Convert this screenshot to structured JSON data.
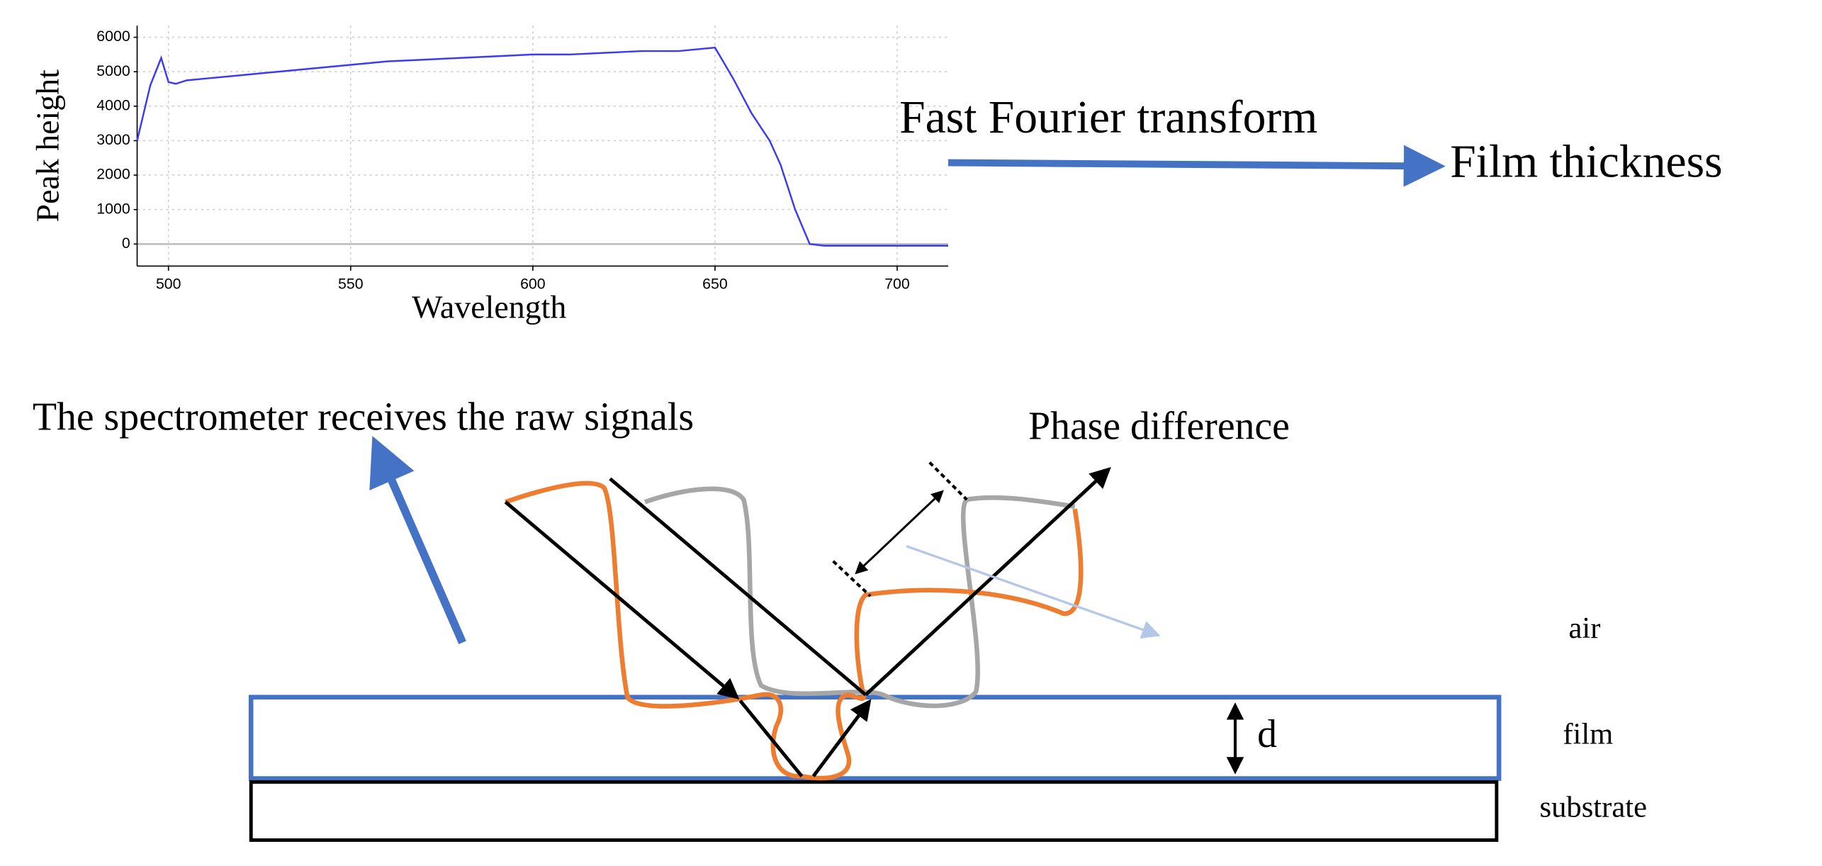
{
  "chart_data": {
    "type": "line",
    "xlabel": "Wavelength",
    "ylabel": "Peak height",
    "x": [
      491.4,
      495,
      498,
      500,
      502,
      505,
      510,
      520,
      530,
      540,
      550,
      560,
      570,
      580,
      590,
      600,
      610,
      620,
      630,
      640,
      650,
      655,
      660,
      665,
      668,
      672,
      676,
      680,
      700,
      714
    ],
    "values": [
      3000,
      4600,
      5400,
      4700,
      4650,
      4750,
      4800,
      4900,
      5000,
      5100,
      5200,
      5300,
      5350,
      5400,
      5450,
      5500,
      5500,
      5550,
      5600,
      5600,
      5700,
      4800,
      3800,
      3000,
      2300,
      1000,
      0,
      -50,
      -50,
      -50
    ],
    "color": "#3b3bf0",
    "xlim": [
      491.4,
      714
    ],
    "ylim": [
      -640,
      6340
    ],
    "xticks": [
      500,
      550,
      600,
      650,
      700
    ],
    "yticks": [
      0,
      1000,
      2000,
      3000,
      4000,
      5000,
      6000
    ],
    "grid": true
  },
  "annotations": {
    "fft": "Fast Fourier transform",
    "result": "Film thickness",
    "spectrometer": "The spectrometer receives the raw signals",
    "phase": "Phase difference",
    "thickness": "d"
  },
  "layers": [
    "air",
    "film",
    "substrate"
  ]
}
